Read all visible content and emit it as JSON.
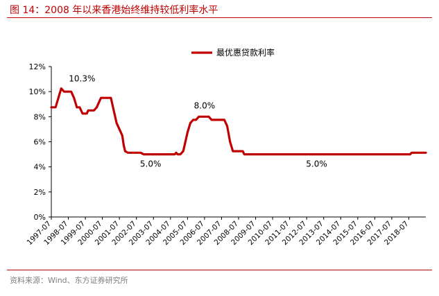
{
  "figure": {
    "title": "图 14：2008 年以来香港始终维持较低利率水平",
    "source": "资料来源：Wind、东方证券研究所"
  },
  "chart_data": {
    "type": "line",
    "title": "",
    "xlabel": "",
    "ylabel": "",
    "ylim": [
      0,
      12
    ],
    "y_ticks": [
      "0%",
      "2%",
      "4%",
      "6%",
      "8%",
      "10%",
      "12%"
    ],
    "y_tick_values": [
      0,
      2,
      4,
      6,
      8,
      10,
      12
    ],
    "x_tick_labels": [
      "1997-07",
      "1998-07",
      "1999-07",
      "2000-07",
      "2001-07",
      "2002-07",
      "2003-07",
      "2004-07",
      "2005-07",
      "2006-07",
      "2007-07",
      "2008-07",
      "2009-07",
      "2010-07",
      "2011-07",
      "2012-07",
      "2013-07",
      "2014-07",
      "2015-07",
      "2016-07",
      "2017-07",
      "2018-07"
    ],
    "x_range": [
      "1997-07",
      "2019-07"
    ],
    "grid": false,
    "legend_position": "top-center",
    "series": [
      {
        "name": "最优惠贷款利率",
        "color": "#c00000",
        "points": [
          [
            "1997-07",
            8.75
          ],
          [
            "1997-10",
            8.75
          ],
          [
            "1997-12",
            9.5
          ],
          [
            "1998-02",
            10.25
          ],
          [
            "1998-04",
            10.0
          ],
          [
            "1998-09",
            10.0
          ],
          [
            "1998-11",
            9.5
          ],
          [
            "1999-01",
            8.75
          ],
          [
            "1999-03",
            8.75
          ],
          [
            "1999-05",
            8.25
          ],
          [
            "1999-08",
            8.25
          ],
          [
            "1999-09",
            8.5
          ],
          [
            "2000-01",
            8.5
          ],
          [
            "2000-03",
            8.75
          ],
          [
            "2000-05",
            9.25
          ],
          [
            "2000-06",
            9.5
          ],
          [
            "2001-01",
            9.5
          ],
          [
            "2001-03",
            8.5
          ],
          [
            "2001-05",
            7.5
          ],
          [
            "2001-07",
            7.0
          ],
          [
            "2001-09",
            6.5
          ],
          [
            "2001-10",
            5.75
          ],
          [
            "2001-11",
            5.25
          ],
          [
            "2002-01",
            5.125
          ],
          [
            "2002-10",
            5.125
          ],
          [
            "2002-12",
            5.0
          ],
          [
            "2004-10",
            5.0
          ],
          [
            "2004-11",
            5.125
          ],
          [
            "2004-12",
            5.0
          ],
          [
            "2005-02",
            5.0
          ],
          [
            "2005-04",
            5.25
          ],
          [
            "2005-05",
            5.75
          ],
          [
            "2005-07",
            6.75
          ],
          [
            "2005-09",
            7.5
          ],
          [
            "2005-11",
            7.75
          ],
          [
            "2006-01",
            7.75
          ],
          [
            "2006-03",
            8.0
          ],
          [
            "2006-10",
            8.0
          ],
          [
            "2006-12",
            7.75
          ],
          [
            "2007-09",
            7.75
          ],
          [
            "2007-11",
            7.25
          ],
          [
            "2008-01",
            6.0
          ],
          [
            "2008-03",
            5.25
          ],
          [
            "2008-10",
            5.25
          ],
          [
            "2008-11",
            5.0
          ],
          [
            "2018-08",
            5.0
          ],
          [
            "2018-09",
            5.125
          ],
          [
            "2019-07",
            5.125
          ]
        ]
      }
    ],
    "annotations": [
      {
        "text": "10.3%",
        "x": "1998-02",
        "y": 10.25
      },
      {
        "text": "5.0%",
        "x": "2003-05",
        "y": 5.0
      },
      {
        "text": "8.0%",
        "x": "2006-07",
        "y": 8.0
      },
      {
        "text": "5.0%",
        "x": "2013-02",
        "y": 5.0
      }
    ]
  }
}
